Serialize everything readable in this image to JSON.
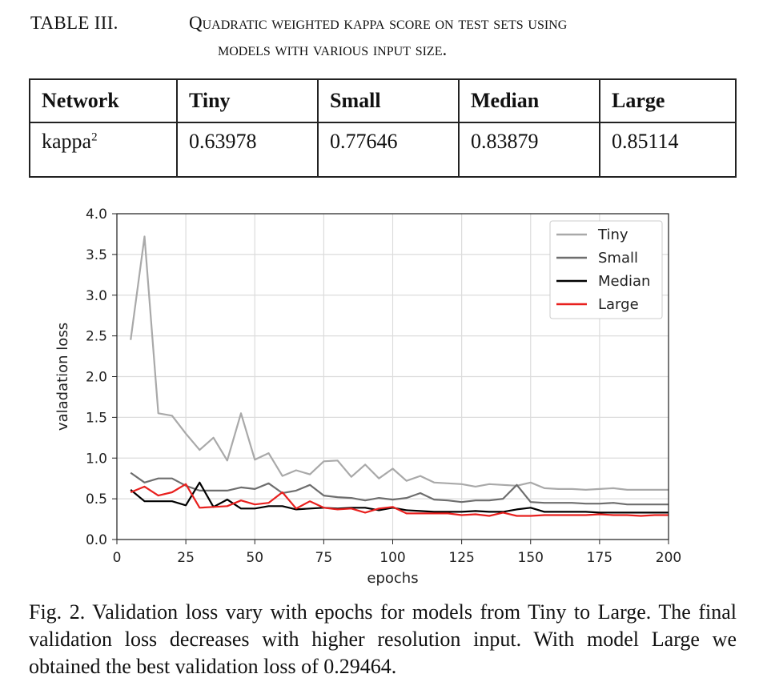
{
  "table": {
    "number": "TABLE III.",
    "caption_line1": "Quadratic weighted kappa score on test sets using",
    "caption_line2": "models with various input size.",
    "headers": [
      "Network",
      "Tiny",
      "Small",
      "Median",
      "Large"
    ],
    "row_label": "kappa",
    "row_label_sup": "2",
    "values": [
      "0.63978",
      "0.77646",
      "0.83879",
      "0.85114"
    ]
  },
  "chart_data": {
    "type": "line",
    "xlabel": "epochs",
    "ylabel": "valadation loss",
    "xlim": [
      0,
      200
    ],
    "ylim": [
      0,
      4.0
    ],
    "xticks": [
      "0",
      "25",
      "50",
      "75",
      "100",
      "125",
      "150",
      "175",
      "200"
    ],
    "yticks": [
      "0.0",
      "0.5",
      "1.0",
      "1.5",
      "2.0",
      "2.5",
      "3.0",
      "3.5",
      "4.0"
    ],
    "grid": true,
    "legend_position": "top-right",
    "x": [
      5,
      10,
      15,
      20,
      25,
      30,
      35,
      40,
      45,
      50,
      55,
      60,
      65,
      70,
      75,
      80,
      85,
      90,
      95,
      100,
      105,
      110,
      115,
      120,
      125,
      130,
      135,
      140,
      145,
      150,
      155,
      160,
      165,
      170,
      175,
      180,
      185,
      190,
      195,
      200
    ],
    "series": [
      {
        "name": "Tiny",
        "color": "#a9a9a9",
        "values": [
          2.45,
          3.72,
          1.55,
          1.52,
          1.3,
          1.1,
          1.25,
          0.97,
          1.55,
          0.98,
          1.06,
          0.78,
          0.85,
          0.8,
          0.96,
          0.97,
          0.77,
          0.92,
          0.75,
          0.87,
          0.72,
          0.78,
          0.7,
          0.69,
          0.68,
          0.65,
          0.68,
          0.67,
          0.66,
          0.7,
          0.63,
          0.62,
          0.62,
          0.61,
          0.62,
          0.63,
          0.61,
          0.61,
          0.61,
          0.61
        ]
      },
      {
        "name": "Small",
        "color": "#6e6e6e",
        "values": [
          0.82,
          0.7,
          0.75,
          0.75,
          0.66,
          0.6,
          0.6,
          0.6,
          0.64,
          0.62,
          0.69,
          0.57,
          0.6,
          0.67,
          0.54,
          0.52,
          0.51,
          0.48,
          0.51,
          0.49,
          0.51,
          0.57,
          0.49,
          0.48,
          0.46,
          0.48,
          0.48,
          0.5,
          0.67,
          0.46,
          0.45,
          0.45,
          0.45,
          0.44,
          0.44,
          0.45,
          0.43,
          0.43,
          0.43,
          0.43
        ]
      },
      {
        "name": "Median",
        "color": "#000000",
        "values": [
          0.61,
          0.47,
          0.47,
          0.47,
          0.42,
          0.7,
          0.4,
          0.49,
          0.38,
          0.38,
          0.41,
          0.41,
          0.37,
          0.38,
          0.39,
          0.38,
          0.39,
          0.39,
          0.36,
          0.39,
          0.36,
          0.35,
          0.34,
          0.34,
          0.34,
          0.35,
          0.34,
          0.34,
          0.37,
          0.39,
          0.34,
          0.34,
          0.34,
          0.34,
          0.33,
          0.33,
          0.33,
          0.33,
          0.33,
          0.33
        ]
      },
      {
        "name": "Large",
        "color": "#e8201e",
        "values": [
          0.58,
          0.65,
          0.54,
          0.58,
          0.68,
          0.39,
          0.4,
          0.41,
          0.48,
          0.43,
          0.45,
          0.58,
          0.38,
          0.47,
          0.39,
          0.37,
          0.38,
          0.33,
          0.38,
          0.4,
          0.32,
          0.32,
          0.32,
          0.32,
          0.3,
          0.31,
          0.29,
          0.33,
          0.29,
          0.29,
          0.3,
          0.3,
          0.3,
          0.3,
          0.31,
          0.3,
          0.3,
          0.29,
          0.3,
          0.3
        ]
      }
    ]
  },
  "figure": {
    "caption": "Fig. 2.   Validation loss vary with epochs for models from Tiny to Large. The final validation loss decreases with higher resolution input. With model Large we obtained the best validation loss of 0.29464."
  }
}
